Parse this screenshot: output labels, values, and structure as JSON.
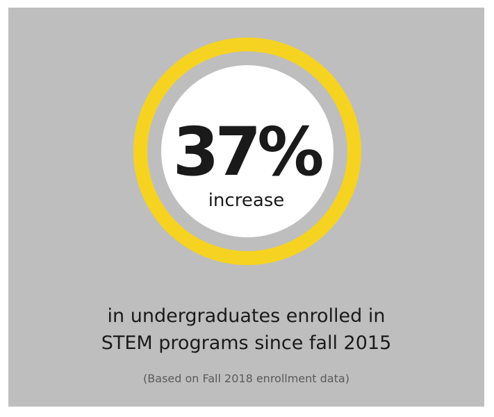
{
  "stat": {
    "value": "37%",
    "label": "increase"
  },
  "headline": {
    "line1": "in undergraduates enrolled in",
    "line2": "STEM programs since fall 2015"
  },
  "footnote": "(Based on Fall 2018 enrollment data)",
  "colors": {
    "background": "#bfbebe",
    "ring": "#f6d320",
    "inner": "#ffffff",
    "text": "#1a1a1a"
  }
}
